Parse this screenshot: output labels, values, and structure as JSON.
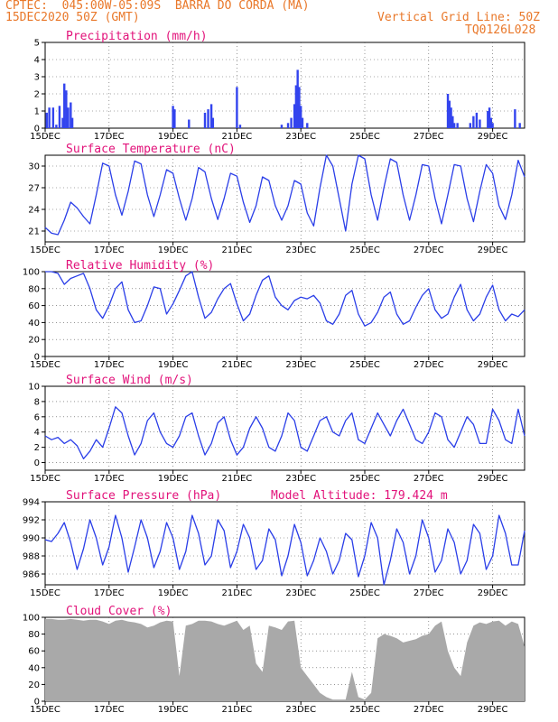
{
  "header": {
    "line1": "CPTEC:  045:00W-05:09S  BARRA DO CORDA (MA)",
    "line2": "15DEC2020 50Z (GMT)",
    "grid_note": "Vertical Grid Line: 50Z",
    "code": "TQ0126L028"
  },
  "colors": {
    "line": "#2a3ee8",
    "bar": "#3344ee",
    "cloud": "#a9a9a9",
    "title": "#e2127a",
    "header": "#e9782a"
  },
  "x_axis": {
    "labels": [
      "15DEC",
      "17DEC",
      "19DEC",
      "21DEC",
      "23DEC",
      "25DEC",
      "27DEC",
      "29DEC"
    ],
    "label_days": [
      0,
      2,
      4,
      6,
      8,
      10,
      12,
      14
    ],
    "range_days": [
      0,
      15
    ]
  },
  "chart_data": [
    {
      "type": "bar",
      "title": "Precipitation (mm/h)",
      "ylim": [
        0,
        5
      ],
      "yticks": [
        0,
        1,
        2,
        3,
        4,
        5
      ],
      "x_days": [
        0.05,
        0.13,
        0.25,
        0.35,
        0.45,
        0.55,
        0.6,
        0.66,
        0.72,
        0.8,
        0.85,
        4.0,
        4.05,
        4.5,
        5.0,
        5.1,
        5.2,
        5.25,
        6.0,
        6.1,
        7.4,
        7.6,
        7.7,
        7.8,
        7.85,
        7.9,
        7.95,
        8.0,
        8.05,
        8.2,
        12.6,
        12.65,
        12.7,
        12.75,
        12.8,
        12.9,
        13.3,
        13.4,
        13.5,
        13.6,
        13.85,
        13.9,
        13.95,
        14.0,
        14.7,
        14.85
      ],
      "values": [
        0.9,
        1.2,
        1.2,
        0.2,
        1.3,
        0.6,
        2.6,
        2.2,
        1.2,
        1.5,
        0.6,
        1.3,
        1.1,
        0.5,
        0.9,
        1.1,
        1.4,
        0.6,
        2.4,
        0.2,
        0.2,
        0.3,
        0.6,
        1.4,
        2.5,
        3.4,
        2.4,
        1.3,
        0.6,
        0.3,
        2.0,
        1.6,
        1.2,
        0.7,
        0.3,
        0.3,
        0.3,
        0.7,
        0.9,
        0.5,
        1.0,
        1.2,
        0.6,
        0.3,
        1.1,
        0.3
      ]
    },
    {
      "type": "line",
      "title": "Surface Temperature (nC)",
      "ylim": [
        19.5,
        31.5
      ],
      "yticks": [
        21,
        24,
        27,
        30
      ],
      "x_days": [
        0,
        0.2,
        0.4,
        0.6,
        0.8,
        1.0,
        1.2,
        1.4,
        1.6,
        1.8,
        2.0,
        2.2,
        2.4,
        2.6,
        2.8,
        3.0,
        3.2,
        3.4,
        3.6,
        3.8,
        4.0,
        4.2,
        4.4,
        4.6,
        4.8,
        5.0,
        5.2,
        5.4,
        5.6,
        5.8,
        6.0,
        6.2,
        6.4,
        6.6,
        6.8,
        7.0,
        7.2,
        7.4,
        7.6,
        7.8,
        8.0,
        8.2,
        8.4,
        8.6,
        8.8,
        9.0,
        9.2,
        9.4,
        9.6,
        9.8,
        10.0,
        10.2,
        10.4,
        10.6,
        10.8,
        11.0,
        11.2,
        11.4,
        11.6,
        11.8,
        12.0,
        12.2,
        12.4,
        12.6,
        12.8,
        13.0,
        13.2,
        13.4,
        13.6,
        13.8,
        14.0,
        14.2,
        14.4,
        14.6,
        14.8,
        15.0
      ],
      "values": [
        21.5,
        20.7,
        20.5,
        22.5,
        25.0,
        24.2,
        23.0,
        22.0,
        26.0,
        30.4,
        30.0,
        26.0,
        23.2,
        26.5,
        30.7,
        30.3,
        26.0,
        23.0,
        26.0,
        29.5,
        29.0,
        25.5,
        22.5,
        25.5,
        29.8,
        29.2,
        25.5,
        22.6,
        25.5,
        29.0,
        28.6,
        25.0,
        22.2,
        24.5,
        28.5,
        28.0,
        24.5,
        22.5,
        24.5,
        28.0,
        27.5,
        23.5,
        21.7,
        27.0,
        31.5,
        30.0,
        25.5,
        21.0,
        27.5,
        31.5,
        31.0,
        26.0,
        22.5,
        27.0,
        31.0,
        30.5,
        26.0,
        22.5,
        26.0,
        30.2,
        30.0,
        25.5,
        22.0,
        26.0,
        30.2,
        30.0,
        25.5,
        22.3,
        26.5,
        30.2,
        29.0,
        24.5,
        22.6,
        26.0,
        30.8,
        28.5
      ]
    },
    {
      "type": "line",
      "title": "Relative Humidity (%)",
      "ylim": [
        0,
        100
      ],
      "yticks": [
        0,
        20,
        40,
        60,
        80,
        100
      ],
      "x_days": [
        0,
        0.2,
        0.4,
        0.6,
        0.8,
        1.0,
        1.2,
        1.4,
        1.6,
        1.8,
        2.0,
        2.2,
        2.4,
        2.6,
        2.8,
        3.0,
        3.2,
        3.4,
        3.6,
        3.8,
        4.0,
        4.2,
        4.4,
        4.6,
        4.8,
        5.0,
        5.2,
        5.4,
        5.6,
        5.8,
        6.0,
        6.2,
        6.4,
        6.6,
        6.8,
        7.0,
        7.2,
        7.4,
        7.6,
        7.8,
        8.0,
        8.2,
        8.4,
        8.6,
        8.8,
        9.0,
        9.2,
        9.4,
        9.6,
        9.8,
        10.0,
        10.2,
        10.4,
        10.6,
        10.8,
        11.0,
        11.2,
        11.4,
        11.6,
        11.8,
        12.0,
        12.2,
        12.4,
        12.6,
        12.8,
        13.0,
        13.2,
        13.4,
        13.6,
        13.8,
        14.0,
        14.2,
        14.4,
        14.6,
        14.8,
        15.0
      ],
      "values": [
        100,
        100,
        98,
        85,
        92,
        95,
        98,
        80,
        55,
        45,
        60,
        80,
        88,
        55,
        40,
        42,
        60,
        82,
        80,
        50,
        62,
        78,
        95,
        100,
        70,
        45,
        52,
        68,
        80,
        86,
        62,
        42,
        50,
        72,
        90,
        95,
        70,
        60,
        55,
        66,
        70,
        68,
        72,
        63,
        42,
        38,
        50,
        72,
        78,
        50,
        36,
        40,
        52,
        70,
        76,
        50,
        38,
        42,
        58,
        72,
        80,
        55,
        45,
        50,
        70,
        85,
        55,
        42,
        50,
        70,
        84,
        55,
        42,
        50,
        47,
        55
      ]
    },
    {
      "type": "line",
      "title": "Surface Wind (m/s)",
      "ylim": [
        -1,
        10
      ],
      "yticks": [
        0,
        2,
        4,
        6,
        8,
        10
      ],
      "x_days": [
        0,
        0.2,
        0.4,
        0.6,
        0.8,
        1.0,
        1.2,
        1.4,
        1.6,
        1.8,
        2.0,
        2.2,
        2.4,
        2.6,
        2.8,
        3.0,
        3.2,
        3.4,
        3.6,
        3.8,
        4.0,
        4.2,
        4.4,
        4.6,
        4.8,
        5.0,
        5.2,
        5.4,
        5.6,
        5.8,
        6.0,
        6.2,
        6.4,
        6.6,
        6.8,
        7.0,
        7.2,
        7.4,
        7.6,
        7.8,
        8.0,
        8.2,
        8.4,
        8.6,
        8.8,
        9.0,
        9.2,
        9.4,
        9.6,
        9.8,
        10.0,
        10.2,
        10.4,
        10.6,
        10.8,
        11.0,
        11.2,
        11.4,
        11.6,
        11.8,
        12.0,
        12.2,
        12.4,
        12.6,
        12.8,
        13.0,
        13.2,
        13.4,
        13.6,
        13.8,
        14.0,
        14.2,
        14.4,
        14.6,
        14.8,
        15.0
      ],
      "values": [
        3.5,
        3.0,
        3.3,
        2.5,
        3.0,
        2.2,
        0.5,
        1.5,
        3.0,
        2.0,
        4.5,
        7.3,
        6.5,
        3.5,
        1.0,
        2.5,
        5.5,
        6.5,
        4.0,
        2.5,
        2.0,
        3.5,
        6.0,
        6.5,
        3.5,
        1.0,
        2.5,
        5.2,
        6.0,
        3.0,
        1.0,
        2.0,
        4.5,
        6.0,
        4.5,
        2.0,
        1.5,
        3.5,
        6.5,
        5.5,
        2.0,
        1.5,
        3.5,
        5.5,
        6.0,
        4.0,
        3.5,
        5.5,
        6.5,
        3.0,
        2.5,
        4.5,
        6.5,
        5.0,
        3.5,
        5.5,
        7.0,
        5.0,
        3.0,
        2.5,
        4.0,
        6.5,
        6.0,
        3.0,
        2.0,
        4.0,
        6.0,
        5.0,
        2.5,
        2.5,
        7.0,
        5.5,
        3.0,
        2.5,
        7.0,
        3.5
      ]
    },
    {
      "type": "line",
      "title": "Surface Pressure (hPa)",
      "annotation": "Model Altitude: 179.424 m",
      "ylim": [
        984.8,
        994
      ],
      "yticks": [
        986,
        988,
        990,
        992,
        994
      ],
      "x_days": [
        0,
        0.2,
        0.4,
        0.6,
        0.8,
        1.0,
        1.2,
        1.4,
        1.6,
        1.8,
        2.0,
        2.2,
        2.4,
        2.6,
        2.8,
        3.0,
        3.2,
        3.4,
        3.6,
        3.8,
        4.0,
        4.2,
        4.4,
        4.6,
        4.8,
        5.0,
        5.2,
        5.4,
        5.6,
        5.8,
        6.0,
        6.2,
        6.4,
        6.6,
        6.8,
        7.0,
        7.2,
        7.4,
        7.6,
        7.8,
        8.0,
        8.2,
        8.4,
        8.6,
        8.8,
        9.0,
        9.2,
        9.4,
        9.6,
        9.8,
        10.0,
        10.2,
        10.4,
        10.6,
        10.8,
        11.0,
        11.2,
        11.4,
        11.6,
        11.8,
        12.0,
        12.2,
        12.4,
        12.6,
        12.8,
        13.0,
        13.2,
        13.4,
        13.6,
        13.8,
        14.0,
        14.2,
        14.4,
        14.6,
        14.8,
        15.0
      ],
      "values": [
        989.8,
        989.6,
        990.5,
        991.7,
        989.5,
        986.5,
        988.8,
        992.0,
        990.0,
        987.0,
        989.0,
        992.5,
        990.0,
        986.2,
        989.0,
        992.0,
        990.0,
        986.7,
        988.5,
        991.7,
        990.0,
        986.5,
        988.5,
        992.5,
        990.5,
        987.0,
        988.0,
        992.0,
        990.8,
        986.7,
        988.5,
        991.5,
        990.0,
        986.5,
        987.5,
        991.0,
        989.8,
        985.8,
        988.0,
        991.5,
        989.5,
        985.8,
        987.5,
        990.0,
        988.5,
        986.0,
        987.5,
        990.5,
        989.8,
        985.7,
        988.0,
        991.7,
        990.0,
        984.8,
        987.5,
        991.0,
        989.5,
        986.0,
        988.0,
        992.0,
        990.0,
        986.2,
        987.5,
        991.0,
        989.5,
        986.0,
        987.5,
        991.5,
        990.5,
        986.5,
        988.0,
        992.5,
        990.5,
        987.0,
        987.0,
        990.8
      ]
    },
    {
      "type": "area",
      "title": "Cloud Cover (%)",
      "ylim": [
        0,
        100
      ],
      "yticks": [
        0,
        20,
        40,
        60,
        80,
        100
      ],
      "x_days": [
        0,
        0.2,
        0.4,
        0.6,
        0.8,
        1.0,
        1.2,
        1.4,
        1.6,
        1.8,
        2.0,
        2.2,
        2.4,
        2.6,
        2.8,
        3.0,
        3.2,
        3.4,
        3.6,
        3.8,
        4.0,
        4.2,
        4.4,
        4.6,
        4.8,
        5.0,
        5.2,
        5.4,
        5.6,
        5.8,
        6.0,
        6.2,
        6.4,
        6.6,
        6.8,
        7.0,
        7.2,
        7.4,
        7.6,
        7.8,
        8.0,
        8.2,
        8.4,
        8.6,
        8.8,
        9.0,
        9.2,
        9.4,
        9.6,
        9.8,
        10.0,
        10.2,
        10.4,
        10.6,
        10.8,
        11.0,
        11.2,
        11.4,
        11.6,
        11.8,
        12.0,
        12.2,
        12.4,
        12.6,
        12.8,
        13.0,
        13.2,
        13.4,
        13.6,
        13.8,
        14.0,
        14.2,
        14.4,
        14.6,
        14.8,
        15.0
      ],
      "values": [
        98,
        98,
        97,
        97,
        98,
        97,
        96,
        97,
        97,
        95,
        92,
        96,
        97,
        95,
        94,
        92,
        88,
        90,
        94,
        96,
        95,
        30,
        90,
        92,
        96,
        96,
        95,
        92,
        90,
        93,
        96,
        85,
        90,
        45,
        35,
        90,
        88,
        85,
        95,
        96,
        40,
        30,
        20,
        10,
        5,
        2,
        2,
        2,
        35,
        5,
        2,
        10,
        75,
        80,
        78,
        75,
        70,
        72,
        74,
        78,
        80,
        90,
        95,
        60,
        40,
        30,
        70,
        90,
        94,
        92,
        95,
        96,
        90,
        95,
        92,
        65
      ]
    }
  ]
}
